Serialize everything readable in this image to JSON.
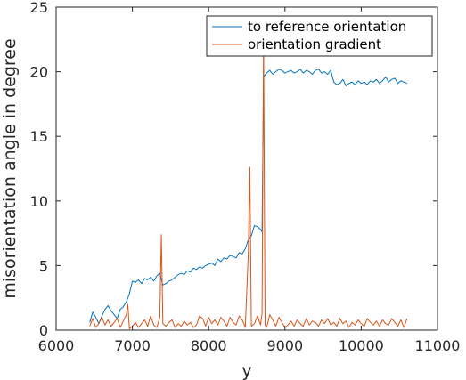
{
  "chart_data": {
    "type": "line",
    "title": "",
    "xlabel": "y",
    "ylabel": "misorientation angle in degree",
    "xlim": [
      6000,
      11000
    ],
    "ylim": [
      0,
      25
    ],
    "xticks": [
      6000,
      7000,
      8000,
      9000,
      10000,
      11000
    ],
    "yticks": [
      0,
      5,
      10,
      15,
      20,
      25
    ],
    "grid": false,
    "legend_position": "top-right",
    "series": [
      {
        "name": "to reference orientation",
        "color": "#0072BD",
        "x": [
          6440,
          6480,
          6520,
          6560,
          6600,
          6640,
          6680,
          6720,
          6760,
          6800,
          6840,
          6880,
          6920,
          6960,
          7000,
          7040,
          7080,
          7120,
          7160,
          7200,
          7240,
          7280,
          7320,
          7360,
          7400,
          7440,
          7480,
          7520,
          7560,
          7600,
          7640,
          7680,
          7720,
          7760,
          7800,
          7840,
          7880,
          7920,
          7960,
          8000,
          8040,
          8080,
          8120,
          8160,
          8200,
          8240,
          8280,
          8320,
          8360,
          8400,
          8440,
          8480,
          8520,
          8560,
          8600,
          8640,
          8680,
          8700,
          8720,
          8760,
          8800,
          8840,
          8880,
          8920,
          8960,
          9000,
          9040,
          9080,
          9120,
          9160,
          9200,
          9240,
          9280,
          9320,
          9360,
          9400,
          9440,
          9480,
          9520,
          9560,
          9600,
          9640,
          9680,
          9720,
          9760,
          9800,
          9840,
          9880,
          9920,
          9960,
          10000,
          10040,
          10080,
          10120,
          10160,
          10200,
          10240,
          10280,
          10320,
          10360,
          10400,
          10440,
          10480,
          10520,
          10560,
          10600
        ],
        "values": [
          0.6,
          1.4,
          1.0,
          0.5,
          1.1,
          1.6,
          1.9,
          1.5,
          1.2,
          0.9,
          1.6,
          1.8,
          2.2,
          2.8,
          3.8,
          3.7,
          3.9,
          3.6,
          4.0,
          3.9,
          4.1,
          3.8,
          4.2,
          4.4,
          3.5,
          3.6,
          3.8,
          3.9,
          4.1,
          4.3,
          4.4,
          4.3,
          4.6,
          4.5,
          4.8,
          4.7,
          4.9,
          4.8,
          5.0,
          5.1,
          5.2,
          5.0,
          5.5,
          5.3,
          5.6,
          5.5,
          5.8,
          5.7,
          5.6,
          6.0,
          5.9,
          6.3,
          7.0,
          7.3,
          8.1,
          8.0,
          7.8,
          7.6,
          19.6,
          19.9,
          20.1,
          19.8,
          20.0,
          20.2,
          20.1,
          19.9,
          20.0,
          20.1,
          19.9,
          20.0,
          20.2,
          19.9,
          20.1,
          20.0,
          19.8,
          20.1,
          20.2,
          19.9,
          20.0,
          19.8,
          20.1,
          19.2,
          19.0,
          19.1,
          19.4,
          18.9,
          19.1,
          19.2,
          19.0,
          19.3,
          19.1,
          19.2,
          19.0,
          19.3,
          19.2,
          19.4,
          19.1,
          19.3,
          19.6,
          19.2,
          19.4,
          19.5,
          19.1,
          19.3,
          19.2,
          19.1
        ]
      },
      {
        "name": "orientation gradient",
        "color": "#D95319",
        "x": [
          6440,
          6480,
          6520,
          6560,
          6600,
          6640,
          6680,
          6720,
          6760,
          6800,
          6840,
          6880,
          6920,
          6940,
          6960,
          7000,
          7040,
          7080,
          7120,
          7160,
          7200,
          7240,
          7280,
          7320,
          7360,
          7380,
          7400,
          7440,
          7480,
          7520,
          7560,
          7600,
          7640,
          7680,
          7720,
          7760,
          7800,
          7840,
          7880,
          7920,
          7960,
          8000,
          8040,
          8080,
          8120,
          8160,
          8200,
          8240,
          8280,
          8320,
          8360,
          8400,
          8440,
          8480,
          8520,
          8540,
          8560,
          8600,
          8640,
          8680,
          8700,
          8720,
          8740,
          8760,
          8800,
          8840,
          8880,
          8920,
          8960,
          9000,
          9040,
          9080,
          9120,
          9160,
          9200,
          9240,
          9280,
          9320,
          9360,
          9400,
          9440,
          9480,
          9520,
          9560,
          9600,
          9640,
          9680,
          9720,
          9760,
          9800,
          9840,
          9880,
          9920,
          9960,
          10000,
          10040,
          10080,
          10120,
          10160,
          10200,
          10240,
          10280,
          10320,
          10360,
          10400,
          10440,
          10480,
          10520,
          10560,
          10600
        ],
        "values": [
          0.3,
          0.9,
          0.2,
          0.5,
          1.0,
          0.4,
          0.8,
          0.3,
          0.6,
          0.9,
          0.2,
          0.7,
          1.2,
          2.0,
          0.1,
          0.3,
          0.6,
          0.2,
          0.5,
          0.8,
          0.3,
          1.1,
          0.4,
          0.2,
          1.0,
          7.4,
          0.5,
          0.3,
          0.6,
          0.8,
          0.2,
          0.5,
          0.3,
          0.7,
          0.4,
          0.6,
          0.2,
          0.4,
          1.1,
          0.9,
          0.3,
          1.0,
          0.5,
          0.8,
          0.4,
          1.0,
          0.7,
          0.3,
          1.0,
          0.6,
          0.4,
          1.1,
          0.8,
          0.2,
          6.0,
          12.6,
          0.3,
          0.5,
          1.1,
          0.4,
          1.3,
          22.6,
          0.4,
          0.2,
          1.2,
          0.8,
          0.3,
          1.0,
          0.6,
          0.2,
          0.4,
          0.7,
          0.3,
          0.8,
          0.5,
          0.3,
          0.9,
          0.4,
          0.7,
          0.6,
          0.3,
          0.8,
          0.5,
          0.9,
          0.4,
          0.6,
          0.3,
          0.9,
          0.5,
          0.7,
          0.2,
          0.6,
          0.4,
          0.8,
          0.5,
          0.3,
          0.9,
          0.6,
          0.4,
          0.7,
          0.3,
          0.8,
          0.5,
          0.4,
          0.9,
          0.6,
          0.3,
          0.8,
          0.2,
          0.9
        ]
      }
    ]
  }
}
